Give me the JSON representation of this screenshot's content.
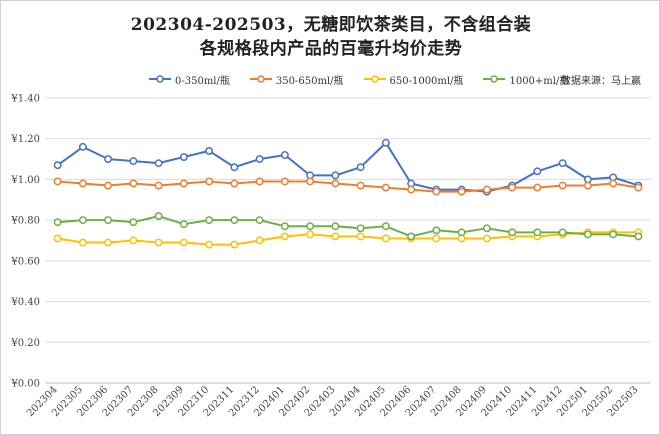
{
  "chart_data": {
    "type": "line",
    "title": "202304-202503，无糖即饮茶类目，不含组合装",
    "subtitle": "各规格段内产品的百毫升均价走势",
    "source": "数据来源：马上赢",
    "xlabel": "",
    "ylabel": "",
    "ylim": [
      0,
      1.4
    ],
    "yticks": [
      "¥0.00",
      "¥0.20",
      "¥0.40",
      "¥0.60",
      "¥0.80",
      "¥1.00",
      "¥1.20",
      "¥1.40"
    ],
    "grid": true,
    "legend_position": "top",
    "categories": [
      "202304",
      "202305",
      "202306",
      "202307",
      "202308",
      "202309",
      "202310",
      "202311",
      "202312",
      "202401",
      "202402",
      "202403",
      "202404",
      "202405",
      "202406",
      "202407",
      "202408",
      "202409",
      "202410",
      "202411",
      "202412",
      "202501",
      "202502",
      "202503"
    ],
    "series": [
      {
        "name": "0-350ml/瓶",
        "color": "#4472C4",
        "values": [
          1.07,
          1.16,
          1.1,
          1.09,
          1.08,
          1.11,
          1.14,
          1.06,
          1.1,
          1.12,
          1.02,
          1.02,
          1.06,
          1.18,
          0.98,
          0.95,
          0.95,
          0.94,
          0.97,
          1.04,
          1.08,
          1.0,
          1.01,
          0.97
        ]
      },
      {
        "name": "350-650ml/瓶",
        "color": "#ED7D31",
        "values": [
          0.99,
          0.98,
          0.97,
          0.98,
          0.97,
          0.98,
          0.99,
          0.98,
          0.99,
          0.99,
          0.99,
          0.98,
          0.97,
          0.96,
          0.95,
          0.94,
          0.94,
          0.95,
          0.96,
          0.96,
          0.97,
          0.97,
          0.98,
          0.96
        ]
      },
      {
        "name": "650-1000ml/瓶",
        "color": "#FFC000",
        "values": [
          0.71,
          0.69,
          0.69,
          0.7,
          0.69,
          0.69,
          0.68,
          0.68,
          0.7,
          0.72,
          0.73,
          0.72,
          0.72,
          0.71,
          0.71,
          0.71,
          0.71,
          0.71,
          0.72,
          0.72,
          0.73,
          0.74,
          0.74,
          0.74
        ]
      },
      {
        "name": "1000+ml/瓶",
        "color": "#70AD47",
        "values": [
          0.79,
          0.8,
          0.8,
          0.79,
          0.82,
          0.78,
          0.8,
          0.8,
          0.8,
          0.77,
          0.77,
          0.77,
          0.76,
          0.77,
          0.72,
          0.75,
          0.74,
          0.76,
          0.74,
          0.74,
          0.74,
          0.73,
          0.73,
          0.72
        ]
      }
    ]
  }
}
